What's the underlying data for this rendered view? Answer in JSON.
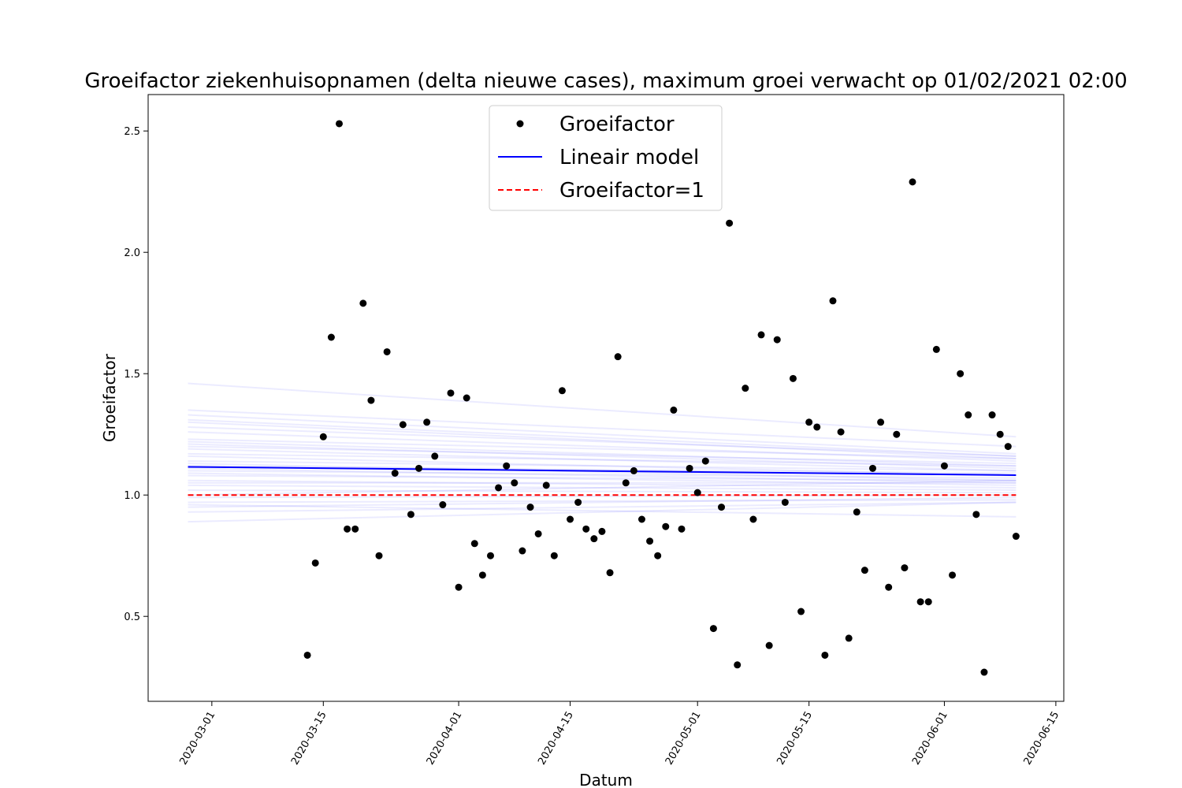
{
  "chart_data": {
    "type": "scatter",
    "title": "Groeifactor ziekenhuisopnamen (delta nieuwe cases), maximum groei verwacht op 01/02/2021 02:00",
    "xlabel": "Datum",
    "ylabel": "Groeifactor",
    "xlim": [
      "2020-02-22",
      "2020-06-16"
    ],
    "ylim": [
      0.15,
      2.65
    ],
    "x_ticks": [
      "2020-03-01",
      "2020-03-15",
      "2020-04-01",
      "2020-04-15",
      "2020-05-01",
      "2020-05-15",
      "2020-06-01",
      "2020-06-15"
    ],
    "y_ticks": [
      0.5,
      1.0,
      1.5,
      2.0,
      2.5
    ],
    "y_tick_labels": [
      "0.5",
      "1.0",
      "1.5",
      "2.0",
      "2.5"
    ],
    "grid": false,
    "legend": {
      "placement": "top-center",
      "entries": [
        "Groeifactor",
        "Lineair model",
        "Groeifactor=1"
      ]
    },
    "colors": {
      "points": "#000000",
      "model": "#0000ff",
      "reference": "#ff0000",
      "bootstrap": "#0000ff"
    },
    "series": [
      {
        "name": "Groeifactor",
        "marker": "dot",
        "points": [
          [
            "2020-03-13",
            0.34
          ],
          [
            "2020-03-14",
            0.72
          ],
          [
            "2020-03-15",
            1.24
          ],
          [
            "2020-03-16",
            1.65
          ],
          [
            "2020-03-17",
            2.53
          ],
          [
            "2020-03-18",
            0.86
          ],
          [
            "2020-03-19",
            0.86
          ],
          [
            "2020-03-20",
            1.79
          ],
          [
            "2020-03-21",
            1.39
          ],
          [
            "2020-03-22",
            0.75
          ],
          [
            "2020-03-23",
            1.59
          ],
          [
            "2020-03-24",
            1.09
          ],
          [
            "2020-03-25",
            1.29
          ],
          [
            "2020-03-26",
            0.92
          ],
          [
            "2020-03-27",
            1.11
          ],
          [
            "2020-03-28",
            1.3
          ],
          [
            "2020-03-29",
            1.16
          ],
          [
            "2020-03-30",
            0.96
          ],
          [
            "2020-03-31",
            1.42
          ],
          [
            "2020-04-01",
            0.62
          ],
          [
            "2020-04-02",
            1.4
          ],
          [
            "2020-04-03",
            0.8
          ],
          [
            "2020-04-04",
            0.67
          ],
          [
            "2020-04-05",
            0.75
          ],
          [
            "2020-04-06",
            1.03
          ],
          [
            "2020-04-07",
            1.12
          ],
          [
            "2020-04-08",
            1.05
          ],
          [
            "2020-04-09",
            0.77
          ],
          [
            "2020-04-10",
            0.95
          ],
          [
            "2020-04-11",
            0.84
          ],
          [
            "2020-04-12",
            1.04
          ],
          [
            "2020-04-13",
            0.75
          ],
          [
            "2020-04-14",
            1.43
          ],
          [
            "2020-04-15",
            0.9
          ],
          [
            "2020-04-16",
            0.97
          ],
          [
            "2020-04-17",
            0.86
          ],
          [
            "2020-04-18",
            0.82
          ],
          [
            "2020-04-19",
            0.85
          ],
          [
            "2020-04-20",
            0.68
          ],
          [
            "2020-04-21",
            1.57
          ],
          [
            "2020-04-22",
            1.05
          ],
          [
            "2020-04-23",
            1.1
          ],
          [
            "2020-04-24",
            0.9
          ],
          [
            "2020-04-25",
            0.81
          ],
          [
            "2020-04-26",
            0.75
          ],
          [
            "2020-04-27",
            0.87
          ],
          [
            "2020-04-28",
            1.35
          ],
          [
            "2020-04-29",
            0.86
          ],
          [
            "2020-04-30",
            1.11
          ],
          [
            "2020-05-01",
            1.01
          ],
          [
            "2020-05-02",
            1.14
          ],
          [
            "2020-05-03",
            0.45
          ],
          [
            "2020-05-04",
            0.95
          ],
          [
            "2020-05-05",
            2.12
          ],
          [
            "2020-05-06",
            0.3
          ],
          [
            "2020-05-07",
            1.44
          ],
          [
            "2020-05-08",
            0.9
          ],
          [
            "2020-05-09",
            1.66
          ],
          [
            "2020-05-10",
            0.38
          ],
          [
            "2020-05-11",
            1.64
          ],
          [
            "2020-05-12",
            0.97
          ],
          [
            "2020-05-13",
            1.48
          ],
          [
            "2020-05-14",
            0.52
          ],
          [
            "2020-05-15",
            1.3
          ],
          [
            "2020-05-16",
            1.28
          ],
          [
            "2020-05-17",
            0.34
          ],
          [
            "2020-05-18",
            1.8
          ],
          [
            "2020-05-19",
            1.26
          ],
          [
            "2020-05-20",
            0.41
          ],
          [
            "2020-05-21",
            0.93
          ],
          [
            "2020-05-22",
            0.69
          ],
          [
            "2020-05-23",
            1.11
          ],
          [
            "2020-05-24",
            1.3
          ],
          [
            "2020-05-25",
            0.62
          ],
          [
            "2020-05-26",
            1.25
          ],
          [
            "2020-05-27",
            0.7
          ],
          [
            "2020-05-28",
            2.29
          ],
          [
            "2020-05-29",
            0.56
          ],
          [
            "2020-05-30",
            0.56
          ],
          [
            "2020-05-31",
            1.6
          ],
          [
            "2020-06-01",
            1.12
          ],
          [
            "2020-06-02",
            0.67
          ],
          [
            "2020-06-03",
            1.5
          ],
          [
            "2020-06-04",
            1.33
          ],
          [
            "2020-06-05",
            0.92
          ],
          [
            "2020-06-06",
            0.27
          ],
          [
            "2020-06-07",
            1.33
          ],
          [
            "2020-06-08",
            1.25
          ],
          [
            "2020-06-09",
            1.2
          ],
          [
            "2020-06-10",
            0.83
          ]
        ]
      },
      {
        "name": "Lineair model",
        "line": "solid",
        "points": [
          [
            "2020-02-27",
            1.116
          ],
          [
            "2020-06-10",
            1.082
          ]
        ]
      },
      {
        "name": "Groeifactor=1",
        "line": "dashed",
        "points": [
          [
            "2020-02-27",
            1.0
          ],
          [
            "2020-06-10",
            1.0
          ]
        ]
      }
    ],
    "bootstrap_lines": {
      "x": [
        "2020-02-27",
        "2020-06-10"
      ],
      "lines": [
        [
          1.46,
          1.24
        ],
        [
          1.35,
          1.2
        ],
        [
          1.33,
          1.17
        ],
        [
          1.31,
          1.16
        ],
        [
          1.3,
          1.15
        ],
        [
          1.28,
          1.16
        ],
        [
          1.26,
          1.14
        ],
        [
          1.23,
          1.15
        ],
        [
          1.22,
          1.12
        ],
        [
          1.21,
          1.11
        ],
        [
          1.2,
          1.13
        ],
        [
          1.19,
          1.1
        ],
        [
          1.17,
          1.12
        ],
        [
          1.16,
          1.08
        ],
        [
          1.14,
          1.1
        ],
        [
          1.13,
          1.06
        ],
        [
          1.12,
          1.09
        ],
        [
          1.11,
          1.05
        ],
        [
          1.1,
          1.07
        ],
        [
          1.09,
          1.04
        ],
        [
          1.08,
          1.06
        ],
        [
          1.06,
          1.03
        ],
        [
          1.05,
          1.05
        ],
        [
          1.04,
          1.02
        ],
        [
          1.02,
          1.01
        ],
        [
          0.99,
          1.0
        ],
        [
          0.97,
          0.98
        ],
        [
          0.95,
          0.99
        ],
        [
          0.93,
          0.97
        ],
        [
          0.89,
          0.97
        ],
        [
          0.96,
          0.91
        ],
        [
          1.0,
          1.06
        ]
      ]
    }
  }
}
